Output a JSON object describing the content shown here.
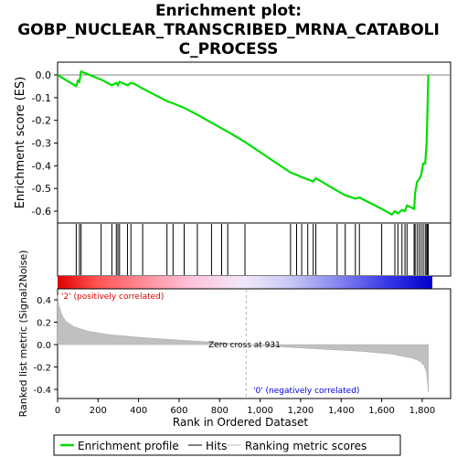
{
  "title_lines": [
    "Enrichment plot:",
    "GOBP_NUCLEAR_TRANSCRIBED_MRNA_CATABOLI",
    "C_PROCESS"
  ],
  "colors": {
    "enrichment_line": "#00dd00",
    "hits": "#000000",
    "ranking_fill": "#c0c0c0",
    "positive_label": "#dd0000",
    "negative_label": "#0000dd",
    "zero_line": "#808080"
  },
  "chart_data": [
    {
      "type": "line",
      "name": "enrichment",
      "ylabel": "Enrichment score (ES)",
      "xlim": [
        0,
        1850
      ],
      "ylim": [
        -0.66,
        0.05
      ],
      "yticks": [
        0.0,
        -0.1,
        -0.2,
        -0.3,
        -0.4,
        -0.5,
        -0.6
      ],
      "ytick_labels": [
        "0.0",
        "-0.1",
        "-0.2",
        "-0.3",
        "-0.4",
        "-0.5",
        "-0.6"
      ],
      "grid": false,
      "series": [
        {
          "name": "Enrichment profile",
          "x": [
            0,
            92,
            100,
            108,
            116,
            215,
            268,
            290,
            298,
            306,
            318,
            345,
            362,
            380,
            420,
            540,
            570,
            625,
            690,
            760,
            810,
            840,
            925,
            1150,
            1180,
            1205,
            1235,
            1262,
            1275,
            1380,
            1420,
            1470,
            1490,
            1600,
            1650,
            1665,
            1680,
            1700,
            1715,
            1725,
            1760,
            1765,
            1775,
            1785,
            1795,
            1805,
            1815,
            1822,
            1826,
            1830
          ],
          "y": [
            0.0,
            -0.05,
            -0.025,
            -0.03,
            0.015,
            -0.02,
            -0.045,
            -0.035,
            -0.045,
            -0.03,
            -0.035,
            -0.045,
            -0.035,
            -0.04,
            -0.06,
            -0.115,
            -0.125,
            -0.145,
            -0.175,
            -0.21,
            -0.235,
            -0.25,
            -0.295,
            -0.43,
            -0.44,
            -0.45,
            -0.46,
            -0.47,
            -0.455,
            -0.51,
            -0.53,
            -0.545,
            -0.54,
            -0.59,
            -0.615,
            -0.6,
            -0.61,
            -0.595,
            -0.6,
            -0.575,
            -0.59,
            -0.52,
            -0.47,
            -0.46,
            -0.44,
            -0.39,
            -0.39,
            -0.3,
            -0.15,
            0.0
          ]
        }
      ],
      "hits": [
        92,
        108,
        116,
        215,
        268,
        290,
        298,
        306,
        345,
        362,
        420,
        540,
        570,
        625,
        690,
        760,
        810,
        840,
        925,
        1150,
        1180,
        1205,
        1235,
        1262,
        1275,
        1380,
        1420,
        1470,
        1490,
        1600,
        1665,
        1680,
        1700,
        1715,
        1725,
        1760,
        1765,
        1775,
        1785,
        1795,
        1805,
        1815,
        1822,
        1826,
        1830
      ]
    },
    {
      "type": "area",
      "name": "ranking",
      "ylabel": "Ranked list metric (Signal2Noise)",
      "xlabel": "Rank in Ordered Dataset",
      "xlim": [
        0,
        1850
      ],
      "ylim": [
        -0.45,
        0.45
      ],
      "xticks": [
        0,
        200,
        400,
        600,
        800,
        1000,
        1200,
        1400,
        1600,
        1800
      ],
      "xtick_labels": [
        "0",
        "200",
        "400",
        "600",
        "800",
        "1,000",
        "1,200",
        "1,400",
        "1,600",
        "1,800"
      ],
      "yticks": [
        0.4,
        0.2,
        0.0,
        -0.2,
        -0.4
      ],
      "ytick_labels": [
        "0.4",
        "0.2",
        "0.0",
        "-0.2",
        "-0.4"
      ],
      "grid": false,
      "x": [
        0,
        5,
        20,
        40,
        80,
        150,
        250,
        400,
        600,
        800,
        931,
        1100,
        1300,
        1500,
        1650,
        1750,
        1790,
        1810,
        1820,
        1826,
        1830
      ],
      "values": [
        0.44,
        0.36,
        0.27,
        0.21,
        0.16,
        0.12,
        0.09,
        0.065,
        0.04,
        0.018,
        0.0,
        -0.02,
        -0.04,
        -0.06,
        -0.085,
        -0.12,
        -0.15,
        -0.19,
        -0.24,
        -0.33,
        -0.42
      ],
      "zero_cross_rank": 931,
      "annotations": {
        "zero_cross": "Zero cross at 931",
        "positive": "'2' (positively correlated)",
        "negative": "'0' (negatively correlated)"
      }
    }
  ],
  "legend": {
    "placement": "bottom",
    "entries": [
      "Enrichment profile",
      "Hits",
      "Ranking metric scores"
    ]
  }
}
